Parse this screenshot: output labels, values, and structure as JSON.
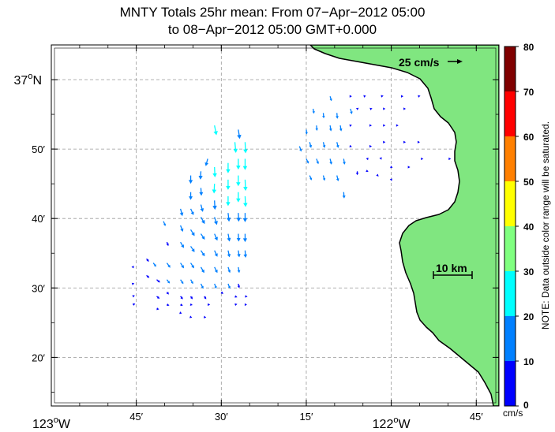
{
  "title": {
    "line1": "MNTY Totals 25hr mean: From 07−Apr−2012 05:00",
    "line2": "to 08−Apr−2012 05:00 GMT+0.000"
  },
  "axes": {
    "lat_labels": [
      {
        "lat": 37.0,
        "deg": "37",
        "o": "o",
        "hem": "N",
        "major": true
      },
      {
        "lat": 36.8333,
        "text": "50′"
      },
      {
        "lat": 36.6667,
        "text": "40′"
      },
      {
        "lat": 36.5,
        "text": "30′"
      },
      {
        "lat": 36.3333,
        "text": "20′"
      }
    ],
    "lon_labels": [
      {
        "lon": -123.0,
        "deg": "123",
        "o": "o",
        "hem": "W",
        "major": true
      },
      {
        "lon": -122.75,
        "text": "45′"
      },
      {
        "lon": -122.5,
        "text": "30′"
      },
      {
        "lon": -122.25,
        "text": "15′"
      },
      {
        "lon": -122.0,
        "deg": "122",
        "o": "o",
        "hem": "W",
        "major": true
      },
      {
        "lon": -121.75,
        "text": "45′"
      }
    ]
  },
  "scale": {
    "vector_label": "25 cm/s",
    "vector_cm_s": 25,
    "distance_label": "10 km",
    "distance_km": 10
  },
  "colorbar": {
    "ticks": [
      "0",
      "10",
      "20",
      "30",
      "40",
      "50",
      "60",
      "70",
      "80"
    ],
    "min": 0,
    "max": 80,
    "unit": "cm/s",
    "colors": [
      "#0000ff",
      "#0080ff",
      "#00ffff",
      "#80ff80",
      "#ffff00",
      "#ff8000",
      "#ff0000",
      "#800000"
    ],
    "note": "NOTE: Data outside color range will be saturated."
  },
  "colors": {
    "land": "#80e680",
    "coast": "#000000",
    "grid": "#999999"
  },
  "chart_data": {
    "type": "vector-field",
    "units": "cm/s",
    "vectors_note": "u = east, v = north (cm/s)",
    "vectors": [
      [
        -122.52,
        36.89,
        4,
        -20
      ],
      [
        -122.45,
        36.88,
        3,
        -19
      ],
      [
        -122.46,
        36.85,
        2,
        -22
      ],
      [
        -122.43,
        36.85,
        1,
        -23
      ],
      [
        -122.56,
        36.78,
        -1,
        -17
      ],
      [
        -122.54,
        36.81,
        -4,
        -15
      ],
      [
        -122.52,
        36.79,
        1,
        -21
      ],
      [
        -122.48,
        36.8,
        0,
        -21
      ],
      [
        -122.45,
        36.81,
        0,
        -22
      ],
      [
        -122.43,
        36.81,
        0,
        -23
      ],
      [
        -122.59,
        36.77,
        0,
        -17
      ],
      [
        -122.56,
        36.74,
        1,
        -16
      ],
      [
        -122.52,
        36.75,
        -1,
        -20
      ],
      [
        -122.48,
        36.76,
        0,
        -21
      ],
      [
        -122.45,
        36.77,
        0,
        -22
      ],
      [
        -122.43,
        36.76,
        1,
        -23
      ],
      [
        -122.59,
        36.73,
        0,
        -16
      ],
      [
        -122.56,
        36.7,
        4,
        -15
      ],
      [
        -122.52,
        36.71,
        1,
        -19
      ],
      [
        -122.48,
        36.72,
        0,
        -20
      ],
      [
        -122.45,
        36.73,
        0,
        -21
      ],
      [
        -122.43,
        36.72,
        1,
        -22
      ],
      [
        -122.62,
        36.69,
        4,
        -15
      ],
      [
        -122.59,
        36.69,
        6,
        -13
      ],
      [
        -122.56,
        36.67,
        8,
        -14
      ],
      [
        -122.52,
        36.67,
        5,
        -16
      ],
      [
        -122.48,
        36.68,
        2,
        -18
      ],
      [
        -122.45,
        36.68,
        1,
        -18
      ],
      [
        -122.43,
        36.68,
        0,
        -19
      ],
      [
        -122.67,
        36.66,
        4,
        -10
      ],
      [
        -122.62,
        36.65,
        5,
        -13
      ],
      [
        -122.59,
        36.64,
        8,
        -13
      ],
      [
        -122.56,
        36.63,
        8,
        -12
      ],
      [
        -122.52,
        36.63,
        6,
        -14
      ],
      [
        -122.48,
        36.63,
        3,
        -16
      ],
      [
        -122.45,
        36.63,
        1,
        -16
      ],
      [
        -122.43,
        36.63,
        0,
        -17
      ],
      [
        -122.66,
        36.61,
        3,
        -8
      ],
      [
        -122.62,
        36.61,
        7,
        -12
      ],
      [
        -122.59,
        36.6,
        8,
        -12
      ],
      [
        -122.56,
        36.59,
        8,
        -12
      ],
      [
        -122.52,
        36.59,
        6,
        -13
      ],
      [
        -122.48,
        36.59,
        3,
        -14
      ],
      [
        -122.45,
        36.59,
        2,
        -14
      ],
      [
        -122.43,
        36.59,
        1,
        -15
      ],
      [
        -122.72,
        36.57,
        5,
        -6
      ],
      [
        -122.7,
        36.56,
        6,
        -8
      ],
      [
        -122.66,
        36.56,
        7,
        -10
      ],
      [
        -122.62,
        36.56,
        7,
        -11
      ],
      [
        -122.59,
        36.56,
        7,
        -11
      ],
      [
        -122.56,
        36.55,
        7,
        -12
      ],
      [
        -122.52,
        36.55,
        6,
        -12
      ],
      [
        -122.48,
        36.55,
        4,
        -12
      ],
      [
        -122.45,
        36.55,
        2,
        -12
      ],
      [
        -122.76,
        36.55,
        2,
        3
      ],
      [
        -122.72,
        36.53,
        6,
        -5
      ],
      [
        -122.69,
        36.52,
        7,
        -6
      ],
      [
        -122.66,
        36.52,
        6,
        -8
      ],
      [
        -122.62,
        36.52,
        6,
        -9
      ],
      [
        -122.59,
        36.52,
        5,
        -9
      ],
      [
        -122.56,
        36.51,
        5,
        -10
      ],
      [
        -122.52,
        36.51,
        4,
        -10
      ],
      [
        -122.48,
        36.51,
        4,
        -10
      ],
      [
        -122.45,
        36.51,
        2,
        -9
      ],
      [
        -122.76,
        36.51,
        3,
        1
      ],
      [
        -122.69,
        36.48,
        6,
        -5
      ],
      [
        -122.66,
        36.49,
        4,
        -5
      ],
      [
        -122.62,
        36.48,
        5,
        -6
      ],
      [
        -122.59,
        36.48,
        4,
        -6
      ],
      [
        -122.55,
        36.48,
        4,
        -6
      ],
      [
        -122.5,
        36.49,
        4,
        -4
      ],
      [
        -122.46,
        36.48,
        5,
        -2
      ],
      [
        -122.43,
        36.48,
        5,
        -1
      ],
      [
        -122.76,
        36.48,
        4,
        2
      ],
      [
        -122.76,
        36.46,
        5,
        2
      ],
      [
        -122.69,
        36.45,
        5,
        -1
      ],
      [
        -122.66,
        36.46,
        5,
        -2
      ],
      [
        -122.62,
        36.46,
        5,
        -2
      ],
      [
        -122.59,
        36.46,
        4,
        -1
      ],
      [
        -122.54,
        36.46,
        5,
        0
      ],
      [
        -122.46,
        36.46,
        5,
        1
      ],
      [
        -122.43,
        36.46,
        4,
        0
      ],
      [
        -122.62,
        36.44,
        3,
        -1
      ],
      [
        -122.59,
        36.43,
        3,
        -1
      ],
      [
        -122.55,
        36.43,
        4,
        -1
      ],
      [
        -122.18,
        36.96,
        3,
        -10
      ],
      [
        -122.23,
        36.93,
        2,
        -10
      ],
      [
        -122.2,
        36.92,
        1,
        -11
      ],
      [
        -122.16,
        36.92,
        1,
        -12
      ],
      [
        -122.12,
        36.93,
        3,
        -11
      ],
      [
        -122.25,
        36.88,
        1,
        -10
      ],
      [
        -122.22,
        36.89,
        1,
        -11
      ],
      [
        -122.18,
        36.89,
        2,
        -12
      ],
      [
        -122.15,
        36.89,
        2,
        -12
      ],
      [
        -122.27,
        36.84,
        4,
        -11
      ],
      [
        -122.24,
        36.85,
        3,
        -12
      ],
      [
        -122.2,
        36.85,
        3,
        -12
      ],
      [
        -122.16,
        36.85,
        3,
        -12
      ],
      [
        -122.25,
        36.81,
        5,
        -10
      ],
      [
        -122.22,
        36.81,
        4,
        -11
      ],
      [
        -122.18,
        36.81,
        3,
        -12
      ],
      [
        -122.14,
        36.81,
        2,
        -12
      ],
      [
        -122.24,
        36.77,
        4,
        -10
      ],
      [
        -122.2,
        36.77,
        3,
        -11
      ],
      [
        -122.16,
        36.77,
        3,
        -12
      ],
      [
        -122.14,
        36.73,
        1,
        -13
      ],
      [
        -122.1,
        36.78,
        0,
        -8
      ],
      [
        -122.07,
        36.81,
        1,
        -3
      ],
      [
        -122.03,
        36.81,
        1,
        -2
      ],
      [
        -122.0,
        36.79,
        3,
        -1
      ],
      [
        -121.95,
        36.79,
        4,
        0
      ],
      [
        -121.91,
        36.81,
        3,
        0
      ],
      [
        -121.83,
        36.81,
        4,
        0
      ],
      [
        -122.12,
        36.84,
        3,
        -1
      ],
      [
        -122.06,
        36.84,
        2,
        0
      ],
      [
        -122.02,
        36.85,
        2,
        0
      ],
      [
        -121.96,
        36.85,
        2,
        0
      ],
      [
        -121.92,
        36.85,
        3,
        0
      ],
      [
        -122.12,
        36.89,
        3,
        1
      ],
      [
        -122.06,
        36.89,
        2,
        0
      ],
      [
        -122.02,
        36.89,
        2,
        0
      ],
      [
        -121.98,
        36.89,
        1,
        0
      ],
      [
        -122.1,
        36.93,
        3,
        2
      ],
      [
        -122.06,
        36.93,
        3,
        1
      ],
      [
        -122.02,
        36.93,
        2,
        0
      ],
      [
        -121.96,
        36.93,
        2,
        0
      ],
      [
        -122.12,
        36.96,
        3,
        0
      ],
      [
        -122.08,
        36.96,
        4,
        1
      ],
      [
        -122.03,
        36.96,
        5,
        1
      ],
      [
        -121.97,
        36.96,
        4,
        0
      ],
      [
        -121.92,
        36.96,
        4,
        1
      ],
      [
        -122.0,
        36.76,
        1,
        -3
      ],
      [
        -122.04,
        36.77,
        2,
        -2
      ],
      [
        -122.07,
        36.78,
        2,
        -1
      ]
    ]
  }
}
